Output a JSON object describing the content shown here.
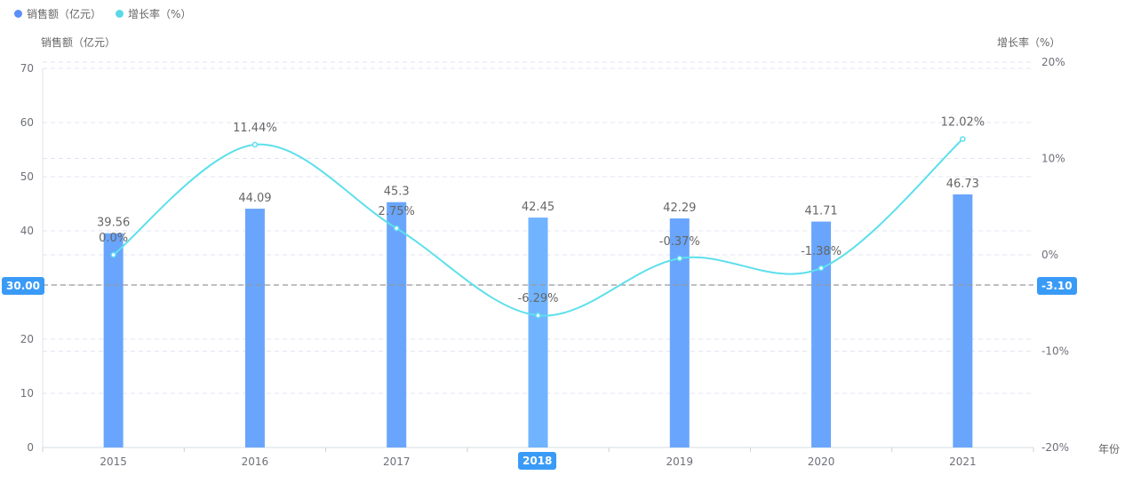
{
  "legend": [
    {
      "label": "销售额（亿元）",
      "color": "#5b8ff9"
    },
    {
      "label": "增长率（%）",
      "color": "#5ad8e6"
    }
  ],
  "axes": {
    "left_name": "销售额（亿元）",
    "right_name": "增长率（%）",
    "x_name": "年份",
    "left_ticks": [
      "0",
      "10",
      "20",
      "30",
      "40",
      "50",
      "60",
      "70"
    ],
    "right_ticks": [
      "-20%",
      "-10%",
      "0%",
      "10%",
      "20%"
    ]
  },
  "mark_lines": {
    "left_value": "30.00",
    "right_value": "-3.10"
  },
  "hovered_category": "2018",
  "colors": {
    "bar": "#69a5fc",
    "bar_hover": "#70b4ff",
    "line": "#5ddfec",
    "badge": "#3a9bf7",
    "grid": "#e0e6f1",
    "markline": "#999999"
  },
  "chart_data": {
    "type": "bar+line",
    "title": "",
    "categories": [
      "2015",
      "2016",
      "2017",
      "2018",
      "2019",
      "2020",
      "2021"
    ],
    "series": [
      {
        "name": "销售额（亿元）",
        "type": "bar",
        "axis": "left",
        "values": [
          39.56,
          44.09,
          45.3,
          42.45,
          42.29,
          41.71,
          46.73
        ],
        "labels": [
          "39.56",
          "44.09",
          "45.3",
          "42.45",
          "42.29",
          "41.71",
          "46.73"
        ]
      },
      {
        "name": "增长率（%）",
        "type": "line",
        "smooth": true,
        "axis": "right",
        "values": [
          0.0,
          11.44,
          2.75,
          -6.29,
          -0.37,
          -1.38,
          12.02
        ],
        "labels": [
          "0.0%",
          "11.44%",
          "2.75%",
          "-6.29%",
          "-0.37%",
          "-1.38%",
          "12.02%"
        ]
      }
    ],
    "xlabel": "年份",
    "ylabel": "销售额（亿元）",
    "ylabel_right": "增长率（%）",
    "ylim": [
      0,
      70
    ],
    "ylim_right": [
      -20,
      20
    ],
    "grid": true,
    "legend_position": "top-left",
    "annotations": [
      {
        "type": "horizontal-markline",
        "axis": "left",
        "value": 30.0
      },
      {
        "type": "horizontal-markline",
        "axis": "right",
        "value": -3.1
      }
    ]
  }
}
